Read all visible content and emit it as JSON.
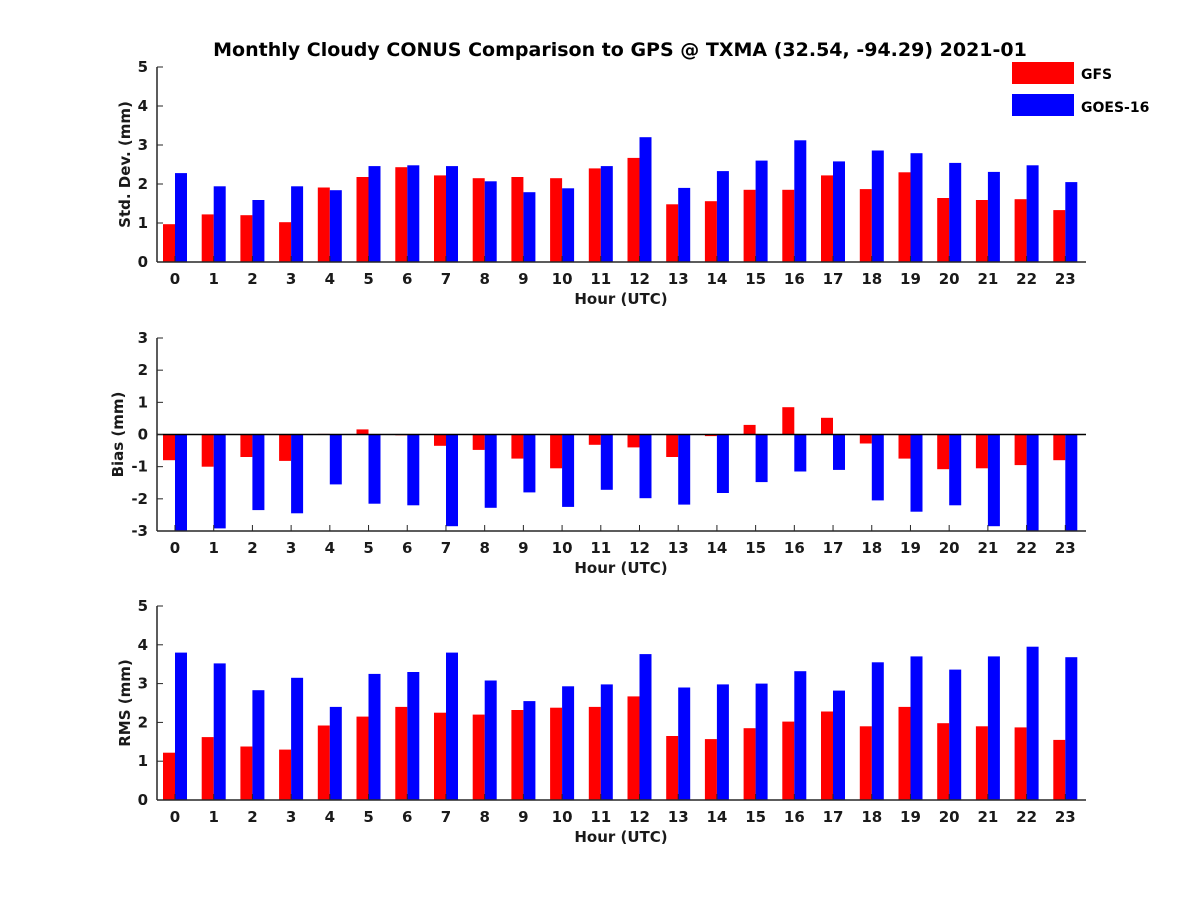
{
  "chart_data": {
    "title": "Monthly Cloudy CONUS Comparison to GPS @ TXMA (32.54, -94.29) 2021-01",
    "type": "bar",
    "colors": {
      "GFS": "#ff0000",
      "GOES-16": "#0000ff"
    },
    "legend": {
      "placement": "top-right",
      "entries": [
        "GFS",
        "GOES-16"
      ]
    },
    "categories": [
      "0",
      "1",
      "2",
      "3",
      "4",
      "5",
      "6",
      "7",
      "8",
      "9",
      "10",
      "11",
      "12",
      "13",
      "14",
      "15",
      "16",
      "17",
      "18",
      "19",
      "20",
      "21",
      "22",
      "23"
    ],
    "panels": [
      {
        "id": "std",
        "ylabel": "Std. Dev. (mm)",
        "xlabel": "Hour (UTC)",
        "ylim": [
          0,
          5
        ],
        "yticks": [
          "0",
          "1",
          "2",
          "3",
          "4",
          "5"
        ],
        "series": [
          {
            "name": "GFS",
            "values": [
              0.97,
              1.22,
              1.2,
              1.02,
              1.91,
              2.18,
              2.43,
              2.22,
              2.15,
              2.18,
              2.15,
              2.4,
              2.67,
              1.48,
              1.56,
              1.85,
              1.85,
              2.22,
              1.87,
              2.3,
              1.64,
              1.59,
              1.61,
              1.33
            ]
          },
          {
            "name": "GOES-16",
            "values": [
              2.28,
              1.94,
              1.59,
              1.94,
              1.84,
              2.46,
              2.48,
              2.46,
              2.07,
              1.79,
              1.89,
              2.46,
              3.2,
              1.9,
              2.33,
              2.6,
              3.12,
              2.58,
              2.86,
              2.79,
              2.54,
              2.31,
              2.48,
              2.05
            ]
          }
        ]
      },
      {
        "id": "bias",
        "ylabel": "Bias (mm)",
        "xlabel": "Hour (UTC)",
        "ylim": [
          -3,
          3
        ],
        "yticks": [
          "-3",
          "-2",
          "-1",
          "0",
          "1",
          "2",
          "3"
        ],
        "series": [
          {
            "name": "GFS",
            "values": [
              -0.8,
              -1.0,
              -0.7,
              -0.82,
              0.02,
              0.16,
              0.0,
              -0.35,
              -0.48,
              -0.75,
              -1.05,
              -0.32,
              -0.4,
              -0.7,
              -0.05,
              0.3,
              0.85,
              0.52,
              -0.28,
              -0.75,
              -1.08,
              -1.05,
              -0.95,
              -0.8
            ]
          },
          {
            "name": "GOES-16",
            "values": [
              -3.0,
              -2.92,
              -2.35,
              -2.45,
              -1.55,
              -2.15,
              -2.2,
              -2.85,
              -2.28,
              -1.8,
              -2.25,
              -1.72,
              -1.98,
              -2.18,
              -1.82,
              -1.48,
              -1.15,
              -1.1,
              -2.05,
              -2.4,
              -2.2,
              -2.85,
              -3.0,
              -3.0
            ]
          }
        ]
      },
      {
        "id": "rms",
        "ylabel": "RMS (mm)",
        "xlabel": "Hour (UTC)",
        "ylim": [
          0,
          5
        ],
        "yticks": [
          "0",
          "1",
          "2",
          "3",
          "4",
          "5"
        ],
        "series": [
          {
            "name": "GFS",
            "values": [
              1.22,
              1.62,
              1.38,
              1.3,
              1.92,
              2.15,
              2.4,
              2.25,
              2.2,
              2.32,
              2.38,
              2.4,
              2.67,
              1.65,
              1.57,
              1.85,
              2.02,
              2.28,
              1.9,
              2.4,
              1.98,
              1.9,
              1.87,
              1.55
            ]
          },
          {
            "name": "GOES-16",
            "values": [
              3.8,
              3.52,
              2.83,
              3.15,
              2.4,
              3.25,
              3.3,
              3.8,
              3.08,
              2.55,
              2.93,
              2.98,
              3.76,
              2.9,
              2.98,
              3.0,
              3.32,
              2.82,
              3.55,
              3.7,
              3.36,
              3.7,
              3.95,
              3.68
            ]
          }
        ]
      }
    ]
  }
}
